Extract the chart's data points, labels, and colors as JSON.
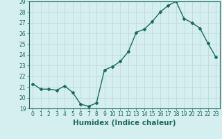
{
  "x": [
    0,
    1,
    2,
    3,
    4,
    5,
    6,
    7,
    8,
    9,
    10,
    11,
    12,
    13,
    14,
    15,
    16,
    17,
    18,
    19,
    20,
    21,
    22,
    23
  ],
  "y": [
    21.3,
    20.8,
    20.8,
    20.7,
    21.1,
    20.5,
    19.4,
    19.2,
    19.5,
    22.6,
    22.9,
    23.4,
    24.3,
    26.1,
    26.4,
    27.1,
    28.0,
    28.6,
    29.0,
    27.4,
    27.0,
    26.5,
    25.1,
    23.8
  ],
  "line_color": "#1a6b5a",
  "marker": "D",
  "marker_size": 2.0,
  "bg_color": "#d5eef0",
  "grid_color": "#b8d8dc",
  "xlabel": "Humidex (Indice chaleur)",
  "ylim": [
    19,
    29
  ],
  "xlim": [
    -0.5,
    23.5
  ],
  "yticks": [
    19,
    20,
    21,
    22,
    23,
    24,
    25,
    26,
    27,
    28,
    29
  ],
  "xticks": [
    0,
    1,
    2,
    3,
    4,
    5,
    6,
    7,
    8,
    9,
    10,
    11,
    12,
    13,
    14,
    15,
    16,
    17,
    18,
    19,
    20,
    21,
    22,
    23
  ],
  "tick_label_fontsize": 5.5,
  "axis_label_fontsize": 7.5,
  "line_width": 1.0
}
